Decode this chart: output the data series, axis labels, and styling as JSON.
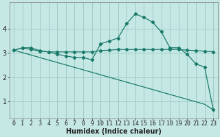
{
  "title": "",
  "xlabel": "Humidex (Indice chaleur)",
  "ylabel": "",
  "bg_color": "#c5e8e5",
  "grid_color": "#a0ccc8",
  "line_color": "#1a7a6a",
  "x_ticks": [
    0,
    1,
    2,
    3,
    4,
    5,
    6,
    7,
    8,
    9,
    10,
    11,
    12,
    13,
    14,
    15,
    16,
    17,
    18,
    19,
    20,
    21,
    22,
    23
  ],
  "y_ticks": [
    1,
    2,
    3,
    4
  ],
  "ylim": [
    0.3,
    5.1
  ],
  "xlim": [
    -0.5,
    23.5
  ],
  "series1_x": [
    0,
    1,
    2,
    3,
    4,
    5,
    6,
    7,
    8,
    9,
    10,
    11,
    12,
    13,
    14,
    15,
    16,
    17,
    18,
    19,
    20,
    21,
    22,
    23
  ],
  "series1_y": [
    3.12,
    3.22,
    3.22,
    3.1,
    3.05,
    2.95,
    2.88,
    2.82,
    2.82,
    2.72,
    3.38,
    3.5,
    3.62,
    4.22,
    4.62,
    4.48,
    4.28,
    3.88,
    3.22,
    3.22,
    2.95,
    2.55,
    2.42,
    0.65
  ],
  "series2_x": [
    0,
    1,
    2,
    3,
    4,
    5,
    6,
    7,
    8,
    9,
    10,
    11,
    12,
    13,
    14,
    15,
    16,
    17,
    18,
    19,
    20,
    21,
    22,
    23
  ],
  "series2_y": [
    3.12,
    3.22,
    3.15,
    3.08,
    3.05,
    3.05,
    3.05,
    3.05,
    3.05,
    3.05,
    3.1,
    3.12,
    3.15,
    3.15,
    3.15,
    3.15,
    3.15,
    3.15,
    3.15,
    3.15,
    3.12,
    3.1,
    3.08,
    3.05
  ],
  "series3_x": [
    0,
    22,
    23
  ],
  "series3_y": [
    3.12,
    0.88,
    0.65
  ],
  "font_color": "#202020",
  "tick_fontsize": 6,
  "xlabel_fontsize": 7
}
